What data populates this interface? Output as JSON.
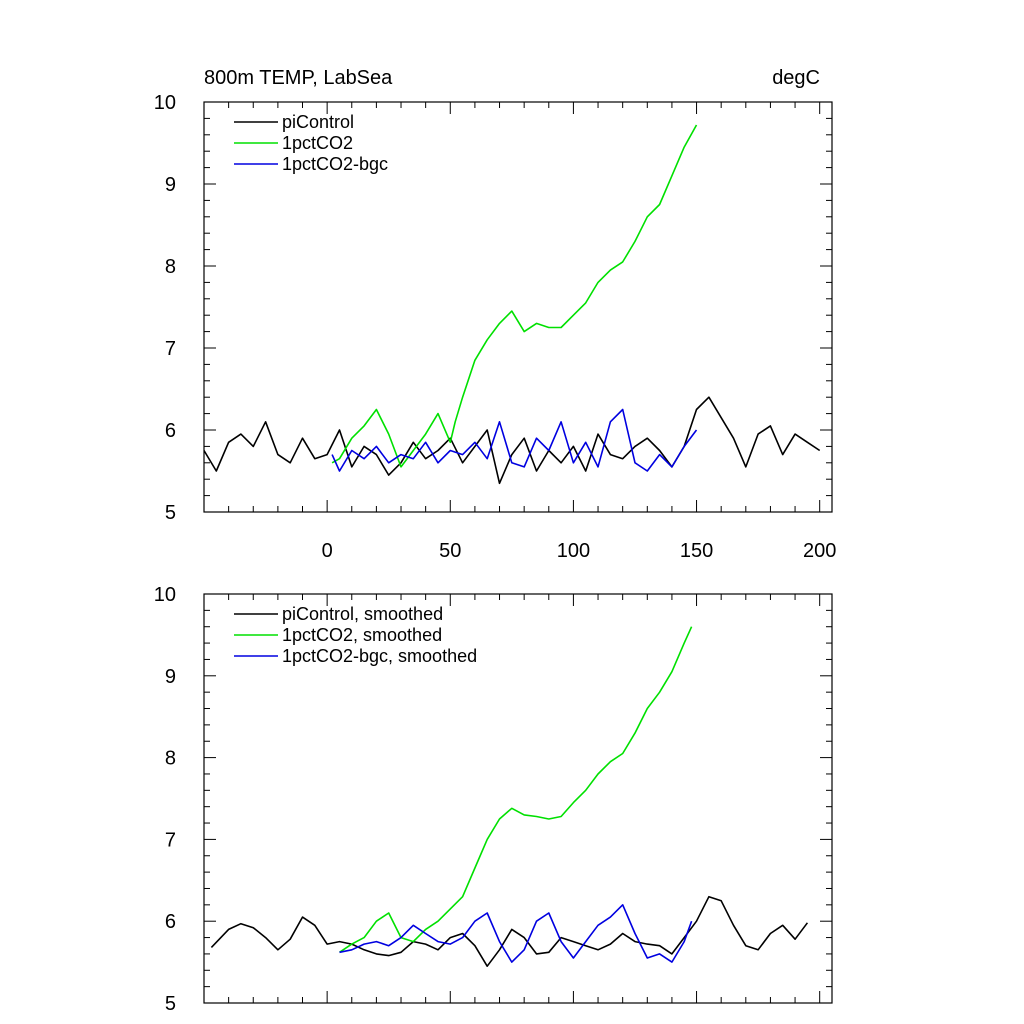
{
  "chart_data": [
    {
      "type": "line",
      "title": "800m TEMP, LabSea",
      "units": "degC",
      "xlim": [
        -50,
        205
      ],
      "ylim": [
        5,
        10
      ],
      "x_ticks": [
        0,
        50,
        100,
        150,
        200
      ],
      "x_tick_labels": [
        "0",
        "50",
        "100",
        "150",
        "200"
      ],
      "y_ticks": [
        5,
        6,
        7,
        8,
        9,
        10
      ],
      "y_tick_labels": [
        "5",
        "6",
        "7",
        "8",
        "9",
        "10"
      ],
      "legend_position": "top-left",
      "series": [
        {
          "name": "piControl",
          "color": "#000000",
          "x": [
            -50,
            -45,
            -40,
            -35,
            -30,
            -25,
            -20,
            -15,
            -10,
            -5,
            0,
            5,
            10,
            15,
            20,
            25,
            30,
            35,
            40,
            45,
            50,
            55,
            60,
            65,
            70,
            75,
            80,
            85,
            90,
            95,
            100,
            105,
            110,
            115,
            120,
            125,
            130,
            135,
            140,
            145,
            150,
            155,
            160,
            165,
            170,
            175,
            180,
            185,
            190,
            195,
            200
          ],
          "values": [
            5.75,
            5.5,
            5.85,
            5.95,
            5.8,
            6.1,
            5.7,
            5.6,
            5.9,
            5.65,
            5.7,
            6.0,
            5.55,
            5.8,
            5.7,
            5.45,
            5.6,
            5.85,
            5.65,
            5.75,
            5.9,
            5.6,
            5.8,
            6.0,
            5.35,
            5.7,
            5.9,
            5.5,
            5.75,
            5.6,
            5.8,
            5.5,
            5.95,
            5.7,
            5.65,
            5.8,
            5.9,
            5.75,
            5.55,
            5.8,
            6.25,
            6.4,
            6.15,
            5.9,
            5.55,
            5.95,
            6.05,
            5.7,
            5.95,
            5.85,
            5.75
          ]
        },
        {
          "name": "1pctCO2",
          "color": "#00e000",
          "x": [
            2,
            5,
            10,
            15,
            20,
            25,
            30,
            35,
            40,
            45,
            50,
            52,
            55,
            60,
            65,
            70,
            75,
            80,
            85,
            90,
            95,
            100,
            105,
            110,
            115,
            120,
            125,
            130,
            135,
            140,
            145,
            150
          ],
          "values": [
            5.6,
            5.65,
            5.9,
            6.05,
            6.25,
            5.95,
            5.55,
            5.75,
            5.95,
            6.2,
            5.85,
            6.1,
            6.4,
            6.85,
            7.1,
            7.3,
            7.45,
            7.2,
            7.3,
            7.25,
            7.25,
            7.4,
            7.55,
            7.8,
            7.95,
            8.05,
            8.3,
            8.6,
            8.75,
            9.1,
            9.45,
            9.72
          ]
        },
        {
          "name": "1pctCO2-bgc",
          "color": "#0000e0",
          "x": [
            2,
            5,
            10,
            15,
            20,
            25,
            30,
            35,
            40,
            45,
            50,
            55,
            60,
            65,
            70,
            75,
            80,
            85,
            90,
            95,
            100,
            105,
            110,
            115,
            120,
            125,
            130,
            135,
            140,
            145,
            150
          ],
          "values": [
            5.7,
            5.5,
            5.75,
            5.65,
            5.8,
            5.6,
            5.7,
            5.65,
            5.85,
            5.6,
            5.75,
            5.7,
            5.85,
            5.65,
            6.1,
            5.6,
            5.55,
            5.9,
            5.75,
            6.1,
            5.6,
            5.85,
            5.55,
            6.1,
            6.25,
            5.6,
            5.5,
            5.7,
            5.55,
            5.8,
            6.0
          ]
        }
      ]
    },
    {
      "type": "line",
      "title": "",
      "xlim": [
        -50,
        205
      ],
      "ylim": [
        5,
        10
      ],
      "x_ticks": [
        0,
        50,
        100,
        150,
        200
      ],
      "y_ticks": [
        5,
        6,
        7,
        8,
        9,
        10
      ],
      "y_tick_labels": [
        "5",
        "6",
        "7",
        "8",
        "9",
        "10"
      ],
      "legend_position": "top-left",
      "series": [
        {
          "name": "piControl, smoothed",
          "color": "#000000",
          "x": [
            -47,
            -40,
            -35,
            -30,
            -25,
            -20,
            -15,
            -10,
            -5,
            0,
            5,
            10,
            15,
            20,
            25,
            30,
            35,
            40,
            45,
            50,
            55,
            60,
            65,
            70,
            75,
            80,
            85,
            90,
            95,
            100,
            105,
            110,
            115,
            120,
            125,
            130,
            135,
            140,
            145,
            150,
            155,
            160,
            165,
            170,
            175,
            180,
            185,
            190,
            195
          ],
          "values": [
            5.68,
            5.9,
            5.97,
            5.92,
            5.8,
            5.65,
            5.78,
            6.05,
            5.95,
            5.72,
            5.75,
            5.72,
            5.65,
            5.6,
            5.58,
            5.62,
            5.75,
            5.72,
            5.65,
            5.8,
            5.85,
            5.7,
            5.45,
            5.65,
            5.9,
            5.8,
            5.6,
            5.62,
            5.8,
            5.75,
            5.7,
            5.65,
            5.72,
            5.85,
            5.75,
            5.72,
            5.7,
            5.6,
            5.8,
            6.0,
            6.3,
            6.25,
            5.95,
            5.7,
            5.65,
            5.85,
            5.95,
            5.78,
            5.98
          ]
        },
        {
          "name": "1pctCO2, smoothed",
          "color": "#00e000",
          "x": [
            5,
            10,
            15,
            20,
            25,
            30,
            35,
            40,
            45,
            50,
            55,
            60,
            65,
            70,
            75,
            80,
            85,
            90,
            95,
            100,
            105,
            110,
            115,
            120,
            125,
            130,
            135,
            140,
            145,
            148
          ],
          "values": [
            5.62,
            5.72,
            5.8,
            6.0,
            6.1,
            5.8,
            5.75,
            5.9,
            6.0,
            6.15,
            6.3,
            6.65,
            7.0,
            7.25,
            7.38,
            7.3,
            7.28,
            7.25,
            7.28,
            7.45,
            7.6,
            7.8,
            7.95,
            8.05,
            8.3,
            8.6,
            8.8,
            9.05,
            9.4,
            9.6
          ]
        },
        {
          "name": "1pctCO2-bgc, smoothed",
          "color": "#0000e0",
          "x": [
            5,
            10,
            15,
            20,
            25,
            30,
            35,
            40,
            45,
            50,
            55,
            60,
            65,
            70,
            75,
            80,
            85,
            90,
            95,
            100,
            105,
            110,
            115,
            120,
            125,
            130,
            135,
            140,
            145,
            148
          ],
          "values": [
            5.62,
            5.65,
            5.72,
            5.75,
            5.7,
            5.8,
            5.95,
            5.85,
            5.75,
            5.72,
            5.8,
            6.0,
            6.1,
            5.75,
            5.5,
            5.65,
            6.0,
            6.1,
            5.75,
            5.55,
            5.75,
            5.95,
            6.05,
            6.2,
            5.85,
            5.55,
            5.6,
            5.5,
            5.75,
            6.0
          ]
        }
      ]
    }
  ]
}
